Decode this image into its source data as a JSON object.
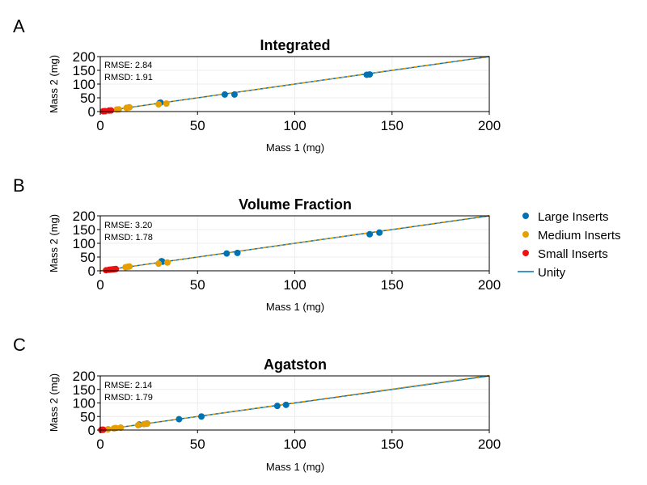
{
  "panels": [
    {
      "letter": "A",
      "annotations": [
        "RMSE: 2.84",
        "RMSD: 1.91"
      ],
      "chart_data": {
        "type": "scatter",
        "title": "Integrated",
        "xlabel": "Mass 1 (mg)",
        "ylabel": "Mass 2 (mg)",
        "xlim": [
          0,
          200
        ],
        "ylim": [
          0,
          200
        ],
        "xticks": [
          0,
          50,
          100,
          150,
          200
        ],
        "yticks": [
          0,
          50,
          100,
          150,
          200
        ],
        "grid": true,
        "series": [
          {
            "name": "Large Inserts",
            "color": "#0072b2",
            "points": [
              [
                30.5,
                31
              ],
              [
                31,
                32.5
              ],
              [
                64,
                62
              ],
              [
                69,
                62
              ],
              [
                137,
                134
              ],
              [
                138.5,
                135
              ]
            ]
          },
          {
            "name": "Medium Inserts",
            "color": "#e69f00",
            "points": [
              [
                8.5,
                7.5
              ],
              [
                9.5,
                8
              ],
              [
                13.5,
                13.5
              ],
              [
                14.5,
                15
              ],
              [
                15,
                15.5
              ],
              [
                30,
                26.5
              ],
              [
                34,
                29
              ]
            ]
          },
          {
            "name": "Small Inserts",
            "color": "#ee1111",
            "points": [
              [
                1.5,
                1
              ],
              [
                2.5,
                1.5
              ],
              [
                4.5,
                3.5
              ],
              [
                5.5,
                4
              ]
            ]
          }
        ],
        "fit_line": {
          "color": "#e69f00",
          "x": [
            0,
            200
          ],
          "y": [
            0,
            201
          ]
        },
        "unity": {
          "name": "Unity",
          "color": "#0072b2",
          "x": [
            0,
            200
          ],
          "y": [
            0,
            200
          ]
        }
      }
    },
    {
      "letter": "B",
      "annotations": [
        "RMSE: 3.20",
        "RMSD: 1.78"
      ],
      "chart_data": {
        "type": "scatter",
        "title": "Volume Fraction",
        "xlabel": "Mass 1 (mg)",
        "ylabel": "Mass 2 (mg)",
        "xlim": [
          0,
          200
        ],
        "ylim": [
          0,
          200
        ],
        "xticks": [
          0,
          50,
          100,
          150,
          200
        ],
        "yticks": [
          0,
          50,
          100,
          150,
          200
        ],
        "grid": true,
        "series": [
          {
            "name": "Large Inserts",
            "color": "#0072b2",
            "points": [
              [
                31.5,
                35
              ],
              [
                32,
                33
              ],
              [
                65,
                63
              ],
              [
                70.5,
                65
              ],
              [
                138.5,
                133
              ],
              [
                143.5,
                139
              ]
            ]
          },
          {
            "name": "Medium Inserts",
            "color": "#e69f00",
            "points": [
              [
                13,
                13
              ],
              [
                14,
                14.5
              ],
              [
                15,
                15.5
              ],
              [
                30,
                26
              ],
              [
                34.5,
                30
              ]
            ]
          },
          {
            "name": "Small Inserts",
            "color": "#ee1111",
            "points": [
              [
                3,
                2
              ],
              [
                4.5,
                3.5
              ],
              [
                5.5,
                4.5
              ],
              [
                6.5,
                5
              ],
              [
                7,
                5.5
              ],
              [
                8,
                6.5
              ]
            ]
          }
        ],
        "fit_line": {
          "color": "#e69f00",
          "x": [
            0,
            200
          ],
          "y": [
            0,
            201
          ]
        },
        "unity": {
          "name": "Unity",
          "color": "#0072b2",
          "x": [
            0,
            200
          ],
          "y": [
            0,
            200
          ]
        }
      }
    },
    {
      "letter": "C",
      "annotations": [
        "RMSE: 2.14",
        "RMSD: 1.79"
      ],
      "chart_data": {
        "type": "scatter",
        "title": "Agatston",
        "xlabel": "Mass 1 (mg)",
        "ylabel": "Mass 2 (mg)",
        "xlim": [
          0,
          200
        ],
        "ylim": [
          0,
          200
        ],
        "xticks": [
          0,
          50,
          100,
          150,
          200
        ],
        "yticks": [
          0,
          50,
          100,
          150,
          200
        ],
        "grid": true,
        "series": [
          {
            "name": "Large Inserts",
            "color": "#0072b2",
            "points": [
              [
                20,
                20
              ],
              [
                24,
                24
              ],
              [
                40.5,
                40
              ],
              [
                52,
                50
              ],
              [
                91,
                89
              ],
              [
                95.5,
                93
              ]
            ]
          },
          {
            "name": "Medium Inserts",
            "color": "#e69f00",
            "points": [
              [
                4,
                3
              ],
              [
                7,
                6
              ],
              [
                8,
                7.5
              ],
              [
                10.5,
                9
              ],
              [
                19.5,
                18
              ],
              [
                22.5,
                22
              ],
              [
                24,
                23
              ]
            ]
          },
          {
            "name": "Small Inserts",
            "color": "#ee1111",
            "points": [
              [
                0.5,
                0.5
              ],
              [
                1,
                1
              ],
              [
                1.5,
                1
              ]
            ]
          }
        ],
        "fit_line": {
          "color": "#e69f00",
          "x": [
            0,
            200
          ],
          "y": [
            0,
            202
          ]
        },
        "unity": {
          "name": "Unity",
          "color": "#0072b2",
          "x": [
            0,
            200
          ],
          "y": [
            0,
            200
          ]
        }
      }
    }
  ],
  "legend": {
    "placement": "right",
    "items": [
      {
        "label": "Large Inserts",
        "kind": "marker",
        "color": "#0072b2"
      },
      {
        "label": "Medium Inserts",
        "kind": "marker",
        "color": "#e69f00"
      },
      {
        "label": "Small Inserts",
        "kind": "marker",
        "color": "#ee1111"
      },
      {
        "label": "Unity",
        "kind": "line",
        "color": "#0072b2"
      }
    ]
  }
}
